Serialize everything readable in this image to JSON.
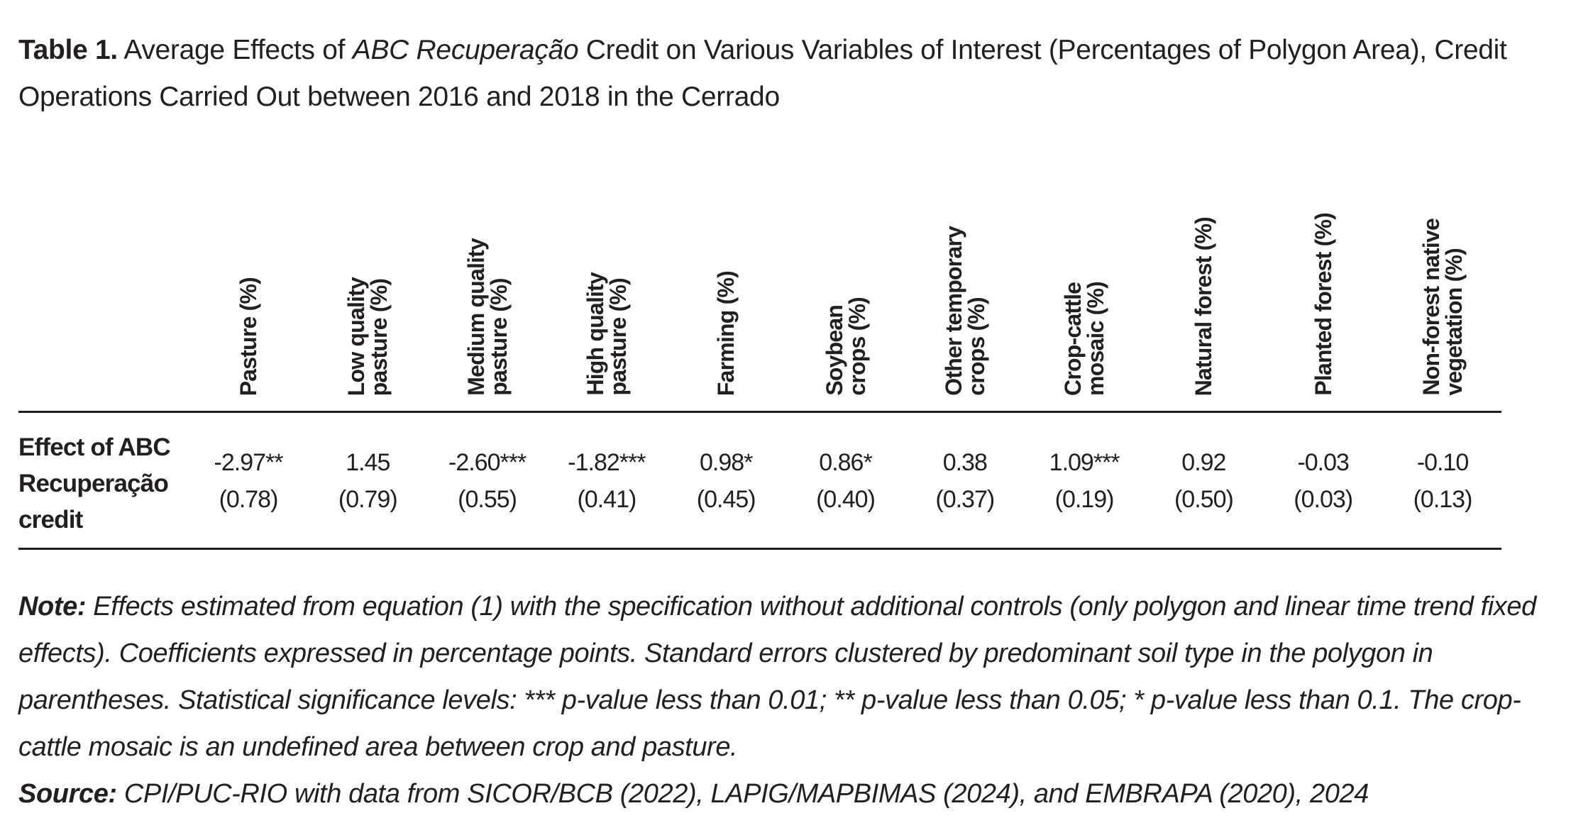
{
  "title": {
    "label": "Table 1.",
    "pre": "Average Effects of ",
    "italic": "ABC Recuperação",
    "post": " Credit on Various Variables of Interest (Percentages of Polygon Area), Credit Operations Carried Out between 2016 and 2018 in the Cerrado"
  },
  "table": {
    "columns": [
      [
        "Pasture (%)"
      ],
      [
        "Low quality",
        "pasture (%)"
      ],
      [
        "Medium quality",
        "pasture (%)"
      ],
      [
        "High quality",
        "pasture (%)"
      ],
      [
        "Farming (%)"
      ],
      [
        "Soybean",
        "crops (%)"
      ],
      [
        "Other temporary",
        "crops (%)"
      ],
      [
        "Crop-cattle",
        "mosaic (%)"
      ],
      [
        "Natural forest (%)"
      ],
      [
        "Planted forest (%)"
      ],
      [
        "Non-forest native",
        "vegetation (%)"
      ]
    ],
    "row_label": [
      "Effect of ABC",
      "Recuperação",
      "credit"
    ],
    "effects": [
      "-2.97**",
      "1.45",
      "-2.60***",
      "-1.82***",
      "0.98*",
      "0.86*",
      "0.38",
      "1.09***",
      "0.92",
      "-0.03",
      "-0.10"
    ],
    "errors": [
      "(0.78)",
      "(0.79)",
      "(0.55)",
      "(0.41)",
      "(0.45)",
      "(0.40)",
      "(0.37)",
      "(0.19)",
      "(0.50)",
      "(0.03)",
      "(0.13)"
    ]
  },
  "note": {
    "label": "Note:",
    "text": " Effects estimated from equation (1) with the specification without additional controls (only polygon and linear time trend fixed effects). Coefficients expressed in percentage points. Standard errors clustered by predominant soil type in the polygon in parentheses. Statistical significance levels: *** p-value less than 0.01; ** p-value less than 0.05; * p-value less than 0.1. The crop-cattle mosaic is an undefined area between crop and pasture."
  },
  "source": {
    "label": "Source:",
    "text": " CPI/PUC-RIO with data from SICOR/BCB (2022), LAPIG/MAPBIMAS (2024), and EMBRAPA (2020), 2024"
  }
}
